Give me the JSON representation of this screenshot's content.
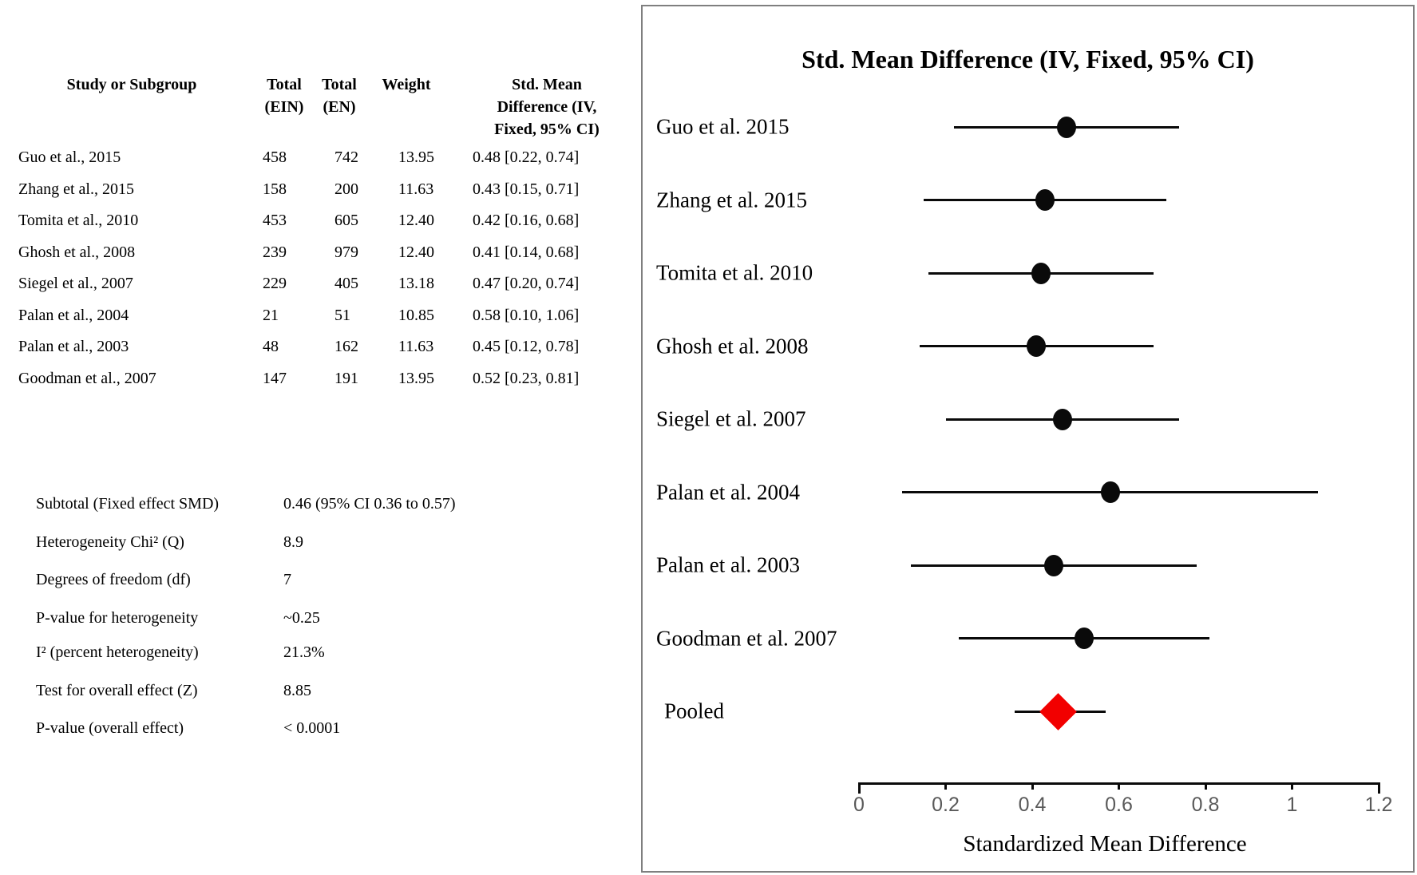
{
  "table": {
    "header": {
      "study": "Study or Subgroup",
      "total_ein": [
        "Total",
        "(EIN)"
      ],
      "total_en": [
        "Total",
        "(EN)"
      ],
      "weight": "Weight",
      "smd": [
        "Std. Mean",
        "Difference (IV,",
        "Fixed, 95% CI)"
      ]
    },
    "rows": [
      {
        "study": "Guo et al., 2015",
        "total_ein": "458",
        "total_en": "742",
        "weight": "13.95",
        "smd": "0.48 [0.22, 0.74]"
      },
      {
        "study": "Zhang et al., 2015",
        "total_ein": "158",
        "total_en": "200",
        "weight": "11.63",
        "smd": "0.43 [0.15, 0.71]"
      },
      {
        "study": "Tomita et al., 2010",
        "total_ein": "453",
        "total_en": "605",
        "weight": "12.40",
        "smd": "0.42 [0.16, 0.68]"
      },
      {
        "study": "Ghosh et al., 2008",
        "total_ein": "239",
        "total_en": "979",
        "weight": "12.40",
        "smd": "0.41 [0.14, 0.68]"
      },
      {
        "study": "Siegel et al., 2007",
        "total_ein": "229",
        "total_en": "405",
        "weight": "13.18",
        "smd": "0.47 [0.20, 0.74]"
      },
      {
        "study": "Palan et al., 2004",
        "total_ein": "21",
        "total_en": "51",
        "weight": "10.85",
        "smd": "0.58 [0.10, 1.06]"
      },
      {
        "study": "Palan et al., 2003",
        "total_ein": "48",
        "total_en": "162",
        "weight": "11.63",
        "smd": "0.45 [0.12, 0.78]"
      },
      {
        "study": "Goodman et al., 2007",
        "total_ein": "147",
        "total_en": "191",
        "weight": "13.95",
        "smd": "0.52 [0.23, 0.81]"
      }
    ]
  },
  "stats": {
    "block1": [
      {
        "label": "Subtotal (Fixed effect SMD)",
        "value": "0.46 (95% CI 0.36 to 0.57)"
      },
      {
        "label": "Heterogeneity Chi² (Q)",
        "value": "8.9"
      },
      {
        "label": "Degrees of freedom (df)",
        "value": "7"
      },
      {
        "label": "P-value for heterogeneity",
        "value": "~0.25"
      }
    ],
    "block2": [
      {
        "label": "I² (percent heterogeneity)",
        "value": "21.3%"
      },
      {
        "label": "Test for overall effect (Z)",
        "value": "8.85"
      },
      {
        "label": "P-value (overall effect)",
        "value": "< 0.0001"
      }
    ]
  },
  "chart_data": {
    "type": "scatter",
    "subtype": "forest_plot",
    "title": "Std. Mean Difference (IV, Fixed, 95% CI)",
    "xlabel": "Standardized Mean Difference",
    "xlim": [
      0,
      1.2
    ],
    "xticks": [
      0,
      0.2,
      0.4,
      0.6,
      0.8,
      1,
      1.2
    ],
    "grid": false,
    "legend": "none",
    "studies": [
      {
        "label": "Guo et al. 2015",
        "est": 0.48,
        "lo": 0.22,
        "hi": 0.74
      },
      {
        "label": "Zhang et al. 2015",
        "est": 0.43,
        "lo": 0.15,
        "hi": 0.71
      },
      {
        "label": "Tomita et al. 2010",
        "est": 0.42,
        "lo": 0.16,
        "hi": 0.68
      },
      {
        "label": "Ghosh et al. 2008",
        "est": 0.41,
        "lo": 0.14,
        "hi": 0.68
      },
      {
        "label": "Siegel et al. 2007",
        "est": 0.47,
        "lo": 0.2,
        "hi": 0.74
      },
      {
        "label": "Palan et al. 2004",
        "est": 0.58,
        "lo": 0.1,
        "hi": 1.06
      },
      {
        "label": "Palan et al. 2003",
        "est": 0.45,
        "lo": 0.12,
        "hi": 0.78
      },
      {
        "label": "Goodman et al. 2007",
        "est": 0.52,
        "lo": 0.23,
        "hi": 0.81
      }
    ],
    "pooled": {
      "label": "Pooled",
      "est": 0.46,
      "lo": 0.36,
      "hi": 0.57
    },
    "colors": {
      "marker": "#0a0a0a",
      "ci_line": "#0a0a0a",
      "pooled_diamond": "#f20000",
      "tick_label": "#595959",
      "panel_border": "#7f7f7f"
    }
  }
}
